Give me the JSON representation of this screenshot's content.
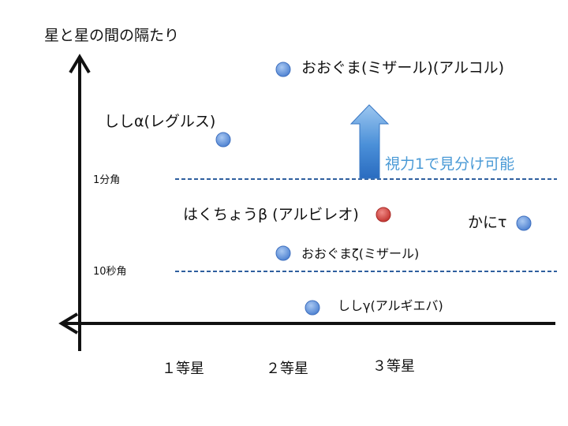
{
  "axes": {
    "y_title": "星と星の間の隔たり",
    "x_ticks": [
      "１等星",
      "２等星",
      "３等星"
    ]
  },
  "reference_lines": [
    {
      "label": "1分角"
    },
    {
      "label": "10秒角"
    }
  ],
  "annotation": {
    "text": "視力1で見分け可能"
  },
  "stars": [
    {
      "label": "おおぐま(ミザール)(アルコル)",
      "color": "#5b8fd6"
    },
    {
      "label": "ししα(レグルス)",
      "color": "#5b8fd6"
    },
    {
      "label": "はくちょうβ (アルビレオ)",
      "color": "#c8403e"
    },
    {
      "label": "かにτ",
      "color": "#5b8fd6"
    },
    {
      "label": "おおぐまζ(ミザール)",
      "color": "#5b8fd6"
    },
    {
      "label": "ししγ(アルギエバ)",
      "color": "#5b8fd6"
    }
  ],
  "colors": {
    "axis": "#111111",
    "dashed_line": "#2f5f9e",
    "arrow": "#3b82d1"
  }
}
